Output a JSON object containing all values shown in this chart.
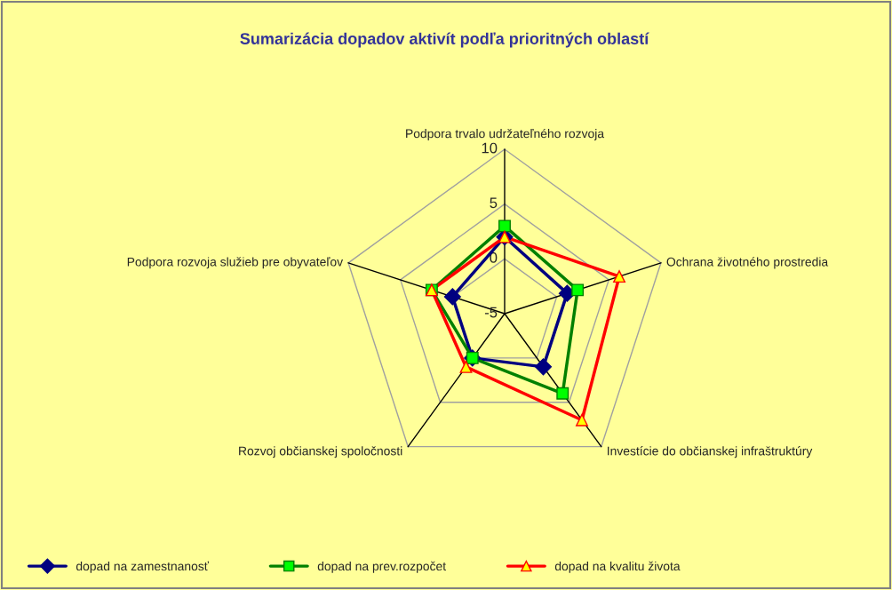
{
  "chart_data": {
    "type": "radar",
    "title": "Sumarizácia dopadov aktivít podľa prioritných oblastí",
    "categories": [
      "Podpora trvalo udržateľného rozvoja",
      "Ochrana životného prostredia",
      "Investície do občianskej infraštruktúry",
      "Rozvoj občianskej spoločnosti",
      "Podpora rozvoja služieb pre obyvateľov"
    ],
    "series": [
      {
        "name": "dopad na zamestnanosť",
        "color": "#000080",
        "marker": "diamond",
        "values": [
          2,
          1,
          1,
          0,
          0
        ]
      },
      {
        "name": "dopad na prev.rozpočet",
        "color": "#008000",
        "marker": "square",
        "values": [
          3,
          2,
          4,
          0,
          2
        ]
      },
      {
        "name": "dopad na kvalitu života",
        "color": "#ff0000",
        "marker": "triangle",
        "values": [
          2,
          6,
          7,
          1,
          2
        ]
      }
    ],
    "ylim": [
      -5,
      10
    ],
    "yticks": [
      -5,
      0,
      5,
      10
    ],
    "grid": true,
    "legend": "bottom"
  }
}
